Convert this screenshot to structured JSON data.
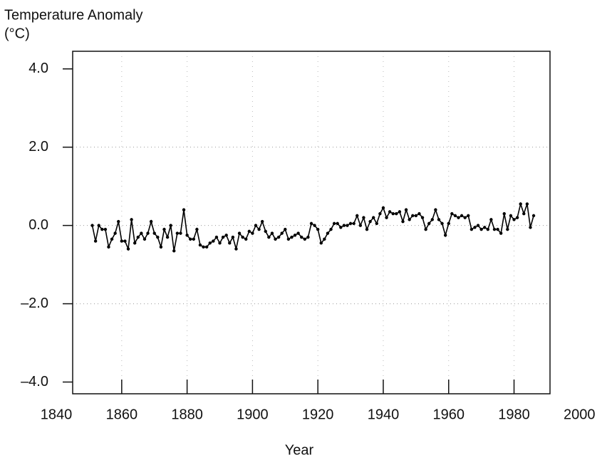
{
  "chart_data": {
    "type": "line",
    "ylabel": [
      "Temperature Anomaly",
      "(°C)"
    ],
    "xlabel": "Year",
    "x": [
      1851,
      1852,
      1853,
      1854,
      1855,
      1856,
      1857,
      1858,
      1859,
      1860,
      1861,
      1862,
      1863,
      1864,
      1865,
      1866,
      1867,
      1868,
      1869,
      1870,
      1871,
      1872,
      1873,
      1874,
      1875,
      1876,
      1877,
      1878,
      1879,
      1880,
      1881,
      1882,
      1883,
      1884,
      1885,
      1886,
      1887,
      1888,
      1889,
      1890,
      1891,
      1892,
      1893,
      1894,
      1895,
      1896,
      1897,
      1898,
      1899,
      1900,
      1901,
      1902,
      1903,
      1904,
      1905,
      1906,
      1907,
      1908,
      1909,
      1910,
      1911,
      1912,
      1913,
      1914,
      1915,
      1916,
      1917,
      1918,
      1919,
      1920,
      1921,
      1922,
      1923,
      1924,
      1925,
      1926,
      1927,
      1928,
      1929,
      1930,
      1931,
      1932,
      1933,
      1934,
      1935,
      1936,
      1937,
      1938,
      1939,
      1940,
      1941,
      1942,
      1943,
      1944,
      1945,
      1946,
      1947,
      1948,
      1949,
      1950,
      1951,
      1952,
      1953,
      1954,
      1955,
      1956,
      1957,
      1958,
      1959,
      1960,
      1961,
      1962,
      1963,
      1964,
      1965,
      1966,
      1967,
      1968,
      1969,
      1970,
      1971,
      1972,
      1973,
      1974,
      1975,
      1976,
      1977,
      1978,
      1979,
      1980,
      1981,
      1982,
      1983,
      1984,
      1985,
      1986
    ],
    "values": [
      0.0,
      -0.4,
      0.0,
      -0.1,
      -0.1,
      -0.55,
      -0.35,
      -0.2,
      0.1,
      -0.4,
      -0.4,
      -0.6,
      0.15,
      -0.45,
      -0.3,
      -0.2,
      -0.35,
      -0.2,
      0.1,
      -0.2,
      -0.3,
      -0.55,
      -0.1,
      -0.3,
      0.0,
      -0.65,
      -0.2,
      -0.2,
      0.4,
      -0.25,
      -0.35,
      -0.35,
      -0.1,
      -0.5,
      -0.55,
      -0.55,
      -0.45,
      -0.4,
      -0.3,
      -0.45,
      -0.3,
      -0.25,
      -0.45,
      -0.3,
      -0.6,
      -0.2,
      -0.3,
      -0.35,
      -0.15,
      -0.2,
      0.0,
      -0.1,
      0.1,
      -0.15,
      -0.3,
      -0.2,
      -0.35,
      -0.3,
      -0.2,
      -0.1,
      -0.35,
      -0.3,
      -0.25,
      -0.2,
      -0.3,
      -0.35,
      -0.3,
      0.05,
      0.0,
      -0.1,
      -0.45,
      -0.35,
      -0.2,
      -0.1,
      0.05,
      0.05,
      -0.05,
      0.0,
      0.0,
      0.05,
      0.05,
      0.25,
      0.0,
      0.2,
      -0.1,
      0.1,
      0.2,
      0.05,
      0.3,
      0.45,
      0.2,
      0.35,
      0.3,
      0.3,
      0.35,
      0.1,
      0.4,
      0.15,
      0.25,
      0.25,
      0.3,
      0.2,
      -0.1,
      0.05,
      0.15,
      0.4,
      0.15,
      0.05,
      -0.25,
      0.05,
      0.3,
      0.25,
      0.2,
      0.25,
      0.2,
      0.25,
      -0.1,
      -0.05,
      0.0,
      -0.1,
      -0.05,
      -0.1,
      0.15,
      -0.1,
      -0.1,
      -0.2,
      0.3,
      -0.1,
      0.25,
      0.15,
      0.2,
      0.55,
      0.3,
      0.55,
      -0.05,
      0.25
    ],
    "color": "#000000",
    "xlim": [
      1845,
      1991
    ],
    "ylim": [
      -4.3,
      4.45
    ],
    "xticks": [
      1840,
      1860,
      1880,
      1900,
      1920,
      1940,
      1960,
      1980,
      2000
    ],
    "yticks": [
      {
        "value": 4,
        "label": "4.0"
      },
      {
        "value": 2,
        "label": "2.0"
      },
      {
        "value": 0,
        "label": "0.0"
      },
      {
        "value": -2,
        "label": "–2.0"
      },
      {
        "value": -4,
        "label": "–4.0"
      }
    ],
    "grid": true
  }
}
